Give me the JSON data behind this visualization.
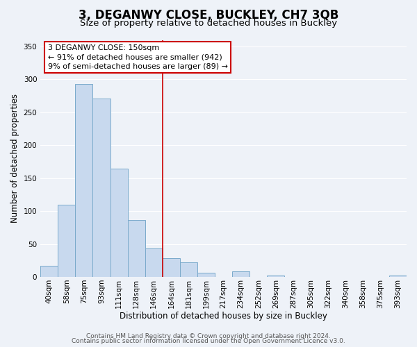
{
  "title": "3, DEGANWY CLOSE, BUCKLEY, CH7 3QB",
  "subtitle": "Size of property relative to detached houses in Buckley",
  "xlabel": "Distribution of detached houses by size in Buckley",
  "ylabel": "Number of detached properties",
  "bar_labels": [
    "40sqm",
    "58sqm",
    "75sqm",
    "93sqm",
    "111sqm",
    "128sqm",
    "146sqm",
    "164sqm",
    "181sqm",
    "199sqm",
    "217sqm",
    "234sqm",
    "252sqm",
    "269sqm",
    "287sqm",
    "305sqm",
    "322sqm",
    "340sqm",
    "358sqm",
    "375sqm",
    "393sqm"
  ],
  "bar_values": [
    17,
    110,
    293,
    271,
    164,
    87,
    43,
    29,
    22,
    6,
    0,
    8,
    0,
    2,
    0,
    0,
    0,
    0,
    0,
    0,
    2
  ],
  "bar_color": "#c8d9ee",
  "bar_edge_color": "#7aaacb",
  "vline_x_index": 6,
  "vline_color": "#cc0000",
  "ylim": [
    0,
    360
  ],
  "yticks": [
    0,
    50,
    100,
    150,
    200,
    250,
    300,
    350
  ],
  "annotation_line1": "3 DEGANWY CLOSE: 150sqm",
  "annotation_line2": "← 91% of detached houses are smaller (942)",
  "annotation_line3": "9% of semi-detached houses are larger (89) →",
  "annotation_box_color": "#ffffff",
  "annotation_box_edge": "#cc0000",
  "footer1": "Contains HM Land Registry data © Crown copyright and database right 2024.",
  "footer2": "Contains public sector information licensed under the Open Government Licence v3.0.",
  "background_color": "#eef2f8",
  "grid_color": "#ffffff",
  "title_fontsize": 12,
  "subtitle_fontsize": 9.5,
  "axis_label_fontsize": 8.5,
  "tick_fontsize": 7.5,
  "annotation_fontsize": 8,
  "footer_fontsize": 6.5
}
